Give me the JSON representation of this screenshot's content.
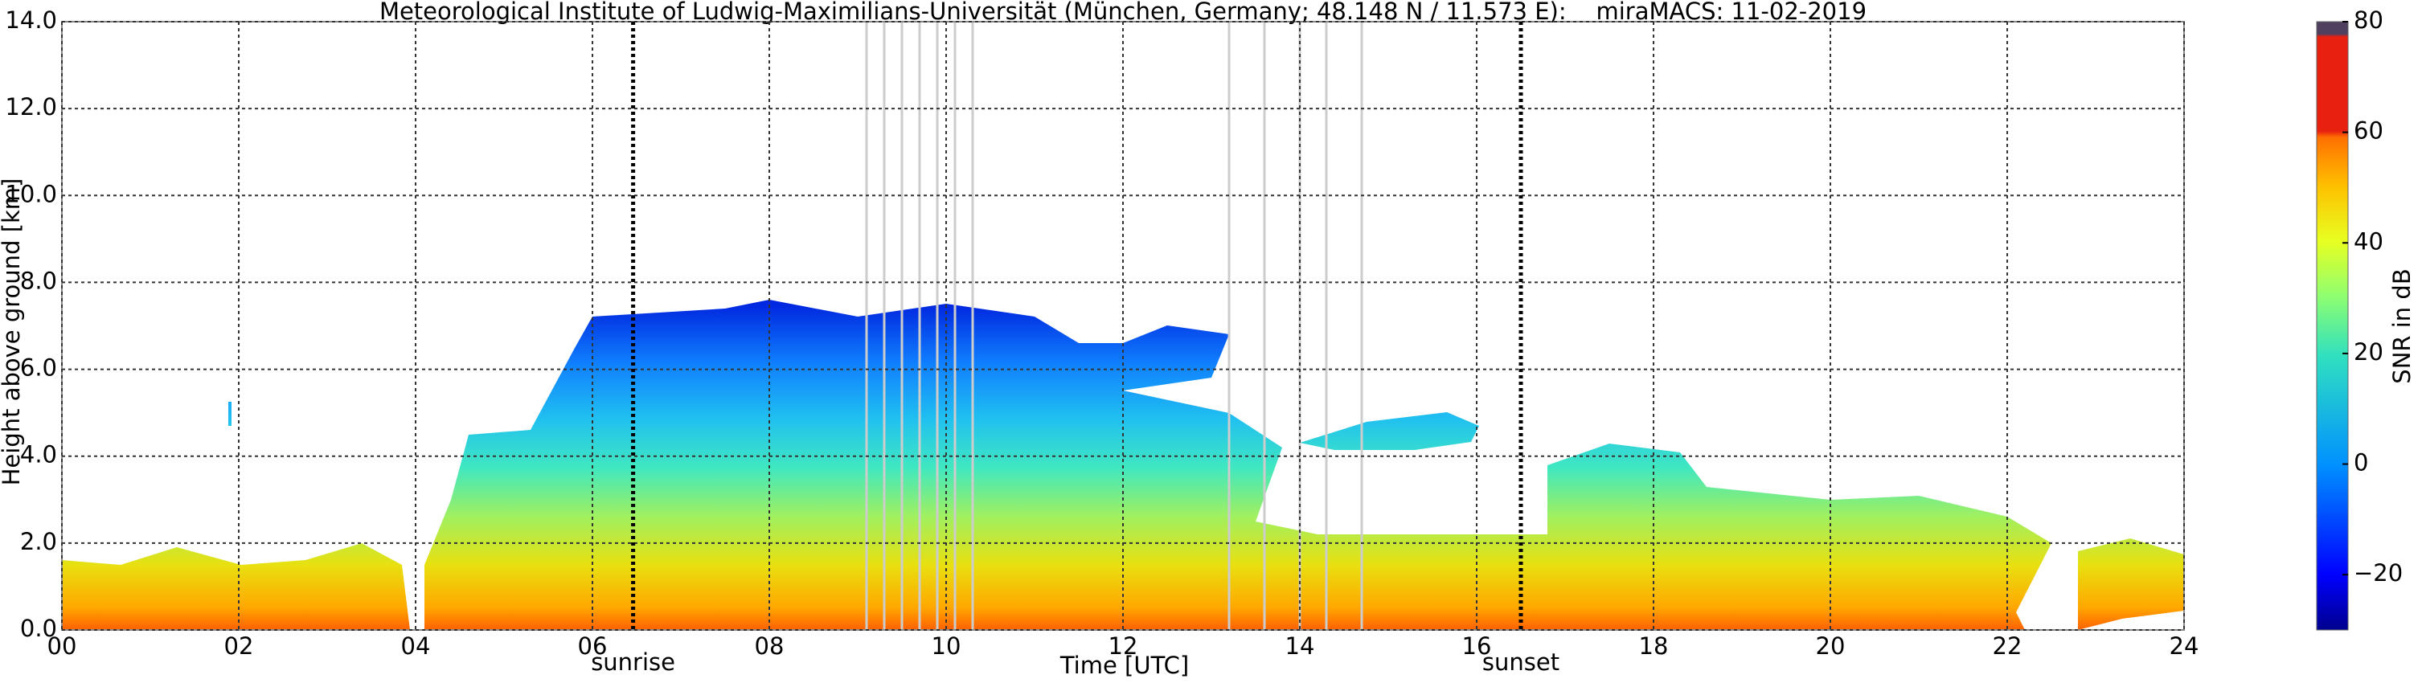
{
  "chart_data": {
    "type": "heatmap",
    "title": "Meteorological Institute of Ludwig-Maximilians-Universität (München, Germany; 48.148 N / 11.573 E):    miraMACS: 11-02-2019",
    "xlabel": "Time [UTC]",
    "ylabel": "Height above ground [km]",
    "colorbar_label": "SNR in dB",
    "xlim": [
      0,
      24
    ],
    "xticks": [
      {
        "value": 0,
        "label": "00"
      },
      {
        "value": 2,
        "label": "02"
      },
      {
        "value": 4,
        "label": "04"
      },
      {
        "value": 6,
        "label": "06"
      },
      {
        "value": 8,
        "label": "08"
      },
      10,
      12,
      14,
      16,
      18,
      20,
      22,
      24
    ],
    "ylim": [
      0,
      14
    ],
    "yticks": [
      {
        "value": 0,
        "label": "0.0"
      },
      {
        "value": 2,
        "label": "2.0"
      },
      {
        "value": 4,
        "label": "4.0"
      },
      {
        "value": 6,
        "label": "6.0"
      },
      {
        "value": 8,
        "label": "8.0"
      },
      {
        "value": 10,
        "label": "10.0"
      },
      {
        "value": 12,
        "label": "12.0"
      },
      {
        "value": 14,
        "label": "14.0"
      }
    ],
    "clim": [
      -30,
      80
    ],
    "cticks": [
      {
        "value": -20,
        "label": "−20"
      },
      0,
      20,
      40,
      60,
      80
    ],
    "annotations": [
      {
        "text": "sunrise",
        "x": 6.46
      },
      {
        "text": "sunset",
        "x": 16.5
      }
    ],
    "grid": true
  }
}
